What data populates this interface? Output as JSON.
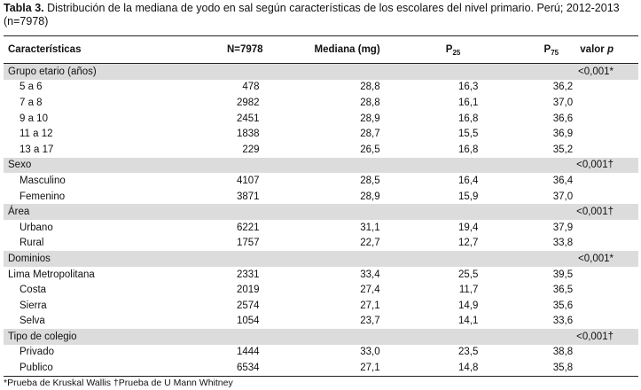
{
  "caption": {
    "label": "Tabla 3.",
    "text": " Distribución de la mediana de yodo en sal según características de los escolares del nivel primario. Perú; 2012-2013 (n=7978)"
  },
  "headers": {
    "characteristics": "Características",
    "n": "N=7978",
    "median": "Mediana (mg)",
    "p25_main": "P",
    "p25_sub": "25",
    "p75_main": "P",
    "p75_sub": "75",
    "pvalue_main": "valor ",
    "pvalue_italic": "p"
  },
  "groups": [
    {
      "label": "Grupo etario (años)",
      "pvalue": "<0,001*",
      "rows": [
        {
          "label": "5 a 6",
          "n": "478",
          "median": "28,8",
          "p25": "16,3",
          "p75": "36,2"
        },
        {
          "label": "7 a 8",
          "n": "2982",
          "median": "28,8",
          "p25": "16,1",
          "p75": "37,0"
        },
        {
          "label": "9 a 10",
          "n": "2451",
          "median": "28,9",
          "p25": "16,8",
          "p75": "36,6"
        },
        {
          "label": "11 a 12",
          "n": "1838",
          "median": "28,7",
          "p25": "15,5",
          "p75": "36,9"
        },
        {
          "label": "13 a 17",
          "n": "229",
          "median": "26,5",
          "p25": "16,8",
          "p75": "35,2"
        }
      ]
    },
    {
      "label": "Sexo",
      "pvalue": "<0,001†",
      "rows": [
        {
          "label": "Masculino",
          "n": "4107",
          "median": "28,5",
          "p25": "16,4",
          "p75": "36,4"
        },
        {
          "label": "Femenino",
          "n": "3871",
          "median": "28,9",
          "p25": "15,9",
          "p75": "37,0"
        }
      ]
    },
    {
      "label": "Área",
      "pvalue": "<0,001†",
      "rows": [
        {
          "label": "Urbano",
          "n": "6221",
          "median": "31,1",
          "p25": "19,4",
          "p75": "37,9"
        },
        {
          "label": "Rural",
          "n": "1757",
          "median": "22,7",
          "p25": "12,7",
          "p75": "33,8"
        }
      ]
    },
    {
      "label": "Dominios",
      "pvalue": "<0,001*",
      "rows": [
        {
          "label": "Lima Metropolitana",
          "n": "2331",
          "median": "33,4",
          "p25": "25,5",
          "p75": "39,5",
          "noindent": true
        },
        {
          "label": "Costa",
          "n": "2019",
          "median": "27,4",
          "p25": "11,7",
          "p75": "36,5"
        },
        {
          "label": "Sierra",
          "n": "2574",
          "median": "27,1",
          "p25": "14,9",
          "p75": "35,6"
        },
        {
          "label": "Selva",
          "n": "1054",
          "median": "23,7",
          "p25": "14,1",
          "p75": "33,6"
        }
      ]
    },
    {
      "label": "Tipo de colegio",
      "pvalue": "<0,001†",
      "rows": [
        {
          "label": "Privado",
          "n": "1444",
          "median": "33,0",
          "p25": "23,5",
          "p75": "38,8"
        },
        {
          "label": "Publico",
          "n": "6534",
          "median": "27,1",
          "p25": "14,8",
          "p75": "35,8"
        }
      ]
    }
  ],
  "footnote": "*Prueba de Kruskal Wallis †Prueba de U Mann Whitney"
}
